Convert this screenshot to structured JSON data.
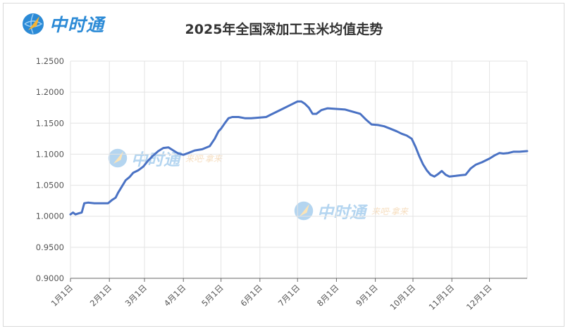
{
  "brand": {
    "name": "中时通",
    "watermark_slogan": "来吧·拿来"
  },
  "chart_data": {
    "type": "line",
    "title": "2025年全国深加工玉米均值走势",
    "xlabel": "",
    "ylabel": "",
    "ylim": [
      0.9,
      1.25
    ],
    "yticks": [
      "0.9000",
      "0.9500",
      "1.0000",
      "1.0500",
      "1.1000",
      "1.1500",
      "1.2000",
      "1.2500"
    ],
    "xticks": [
      "1月1日",
      "2月1日",
      "3月1日",
      "4月1日",
      "5月1日",
      "6月1日",
      "7月1日",
      "8月1日",
      "9月1日",
      "10月1日",
      "11月1日",
      "12月1日"
    ],
    "grid": true,
    "line_color": "#4a72c4",
    "series": [
      {
        "name": "",
        "points": [
          [
            "2025-01-01",
            1.003
          ],
          [
            "2025-01-03",
            1.006
          ],
          [
            "2025-01-05",
            1.003
          ],
          [
            "2025-01-08",
            1.005
          ],
          [
            "2025-01-10",
            1.006
          ],
          [
            "2025-01-12",
            1.021
          ],
          [
            "2025-01-15",
            1.022
          ],
          [
            "2025-01-20",
            1.021
          ],
          [
            "2025-01-25",
            1.021
          ],
          [
            "2025-01-31",
            1.021
          ],
          [
            "2025-02-03",
            1.026
          ],
          [
            "2025-02-06",
            1.03
          ],
          [
            "2025-02-08",
            1.038
          ],
          [
            "2025-02-11",
            1.048
          ],
          [
            "2025-02-14",
            1.058
          ],
          [
            "2025-02-17",
            1.063
          ],
          [
            "2025-02-20",
            1.07
          ],
          [
            "2025-02-24",
            1.074
          ],
          [
            "2025-02-28",
            1.08
          ],
          [
            "2025-03-04",
            1.09
          ],
          [
            "2025-03-08",
            1.098
          ],
          [
            "2025-03-12",
            1.105
          ],
          [
            "2025-03-16",
            1.11
          ],
          [
            "2025-03-20",
            1.111
          ],
          [
            "2025-03-24",
            1.106
          ],
          [
            "2025-03-28",
            1.101
          ],
          [
            "2025-04-01",
            1.099
          ],
          [
            "2025-04-05",
            1.102
          ],
          [
            "2025-04-10",
            1.106
          ],
          [
            "2025-04-16",
            1.108
          ],
          [
            "2025-04-22",
            1.113
          ],
          [
            "2025-04-26",
            1.125
          ],
          [
            "2025-04-29",
            1.137
          ],
          [
            "2025-05-01",
            1.141
          ],
          [
            "2025-05-04",
            1.15
          ],
          [
            "2025-05-07",
            1.158
          ],
          [
            "2025-05-10",
            1.16
          ],
          [
            "2025-05-15",
            1.16
          ],
          [
            "2025-05-20",
            1.158
          ],
          [
            "2025-05-25",
            1.158
          ],
          [
            "2025-06-01",
            1.159
          ],
          [
            "2025-06-06",
            1.16
          ],
          [
            "2025-06-10",
            1.164
          ],
          [
            "2025-06-15",
            1.169
          ],
          [
            "2025-06-20",
            1.174
          ],
          [
            "2025-06-25",
            1.179
          ],
          [
            "2025-07-01",
            1.185
          ],
          [
            "2025-07-04",
            1.185
          ],
          [
            "2025-07-07",
            1.181
          ],
          [
            "2025-07-10",
            1.175
          ],
          [
            "2025-07-13",
            1.165
          ],
          [
            "2025-07-16",
            1.165
          ],
          [
            "2025-07-20",
            1.171
          ],
          [
            "2025-07-25",
            1.174
          ],
          [
            "2025-08-01",
            1.173
          ],
          [
            "2025-08-08",
            1.172
          ],
          [
            "2025-08-15",
            1.168
          ],
          [
            "2025-08-20",
            1.165
          ],
          [
            "2025-08-25",
            1.155
          ],
          [
            "2025-08-29",
            1.148
          ],
          [
            "2025-09-03",
            1.147
          ],
          [
            "2025-09-08",
            1.145
          ],
          [
            "2025-09-13",
            1.141
          ],
          [
            "2025-09-18",
            1.137
          ],
          [
            "2025-09-22",
            1.133
          ],
          [
            "2025-09-26",
            1.13
          ],
          [
            "2025-09-30",
            1.125
          ],
          [
            "2025-10-03",
            1.112
          ],
          [
            "2025-10-06",
            1.097
          ],
          [
            "2025-10-09",
            1.084
          ],
          [
            "2025-10-12",
            1.074
          ],
          [
            "2025-10-15",
            1.067
          ],
          [
            "2025-10-18",
            1.064
          ],
          [
            "2025-10-21",
            1.068
          ],
          [
            "2025-10-24",
            1.073
          ],
          [
            "2025-10-27",
            1.067
          ],
          [
            "2025-10-30",
            1.064
          ],
          [
            "2025-11-04",
            1.065
          ],
          [
            "2025-11-08",
            1.066
          ],
          [
            "2025-11-12",
            1.067
          ],
          [
            "2025-11-16",
            1.077
          ],
          [
            "2025-11-20",
            1.083
          ],
          [
            "2025-11-25",
            1.087
          ],
          [
            "2025-12-01",
            1.093
          ],
          [
            "2025-12-05",
            1.098
          ],
          [
            "2025-12-09",
            1.102
          ],
          [
            "2025-12-12",
            1.101
          ],
          [
            "2025-12-16",
            1.102
          ],
          [
            "2025-12-20",
            1.104
          ],
          [
            "2025-12-25",
            1.104
          ],
          [
            "2025-12-31",
            1.105
          ]
        ]
      }
    ]
  }
}
